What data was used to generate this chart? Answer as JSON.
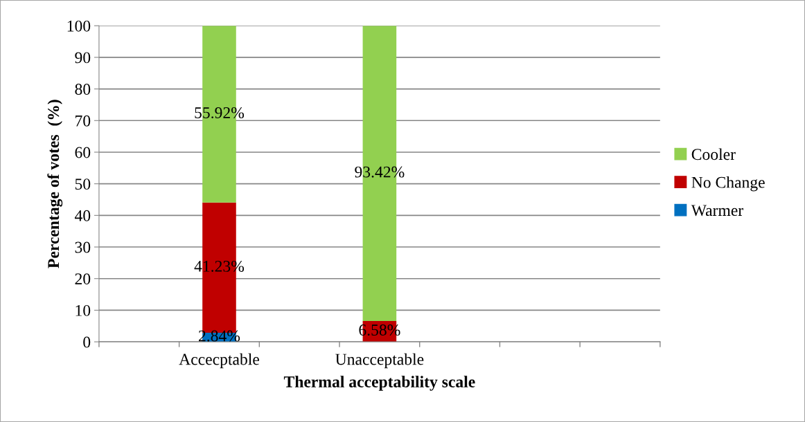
{
  "chart_data": {
    "type": "bar",
    "stacked": true,
    "xlabel": "Thermal acceptability scale",
    "ylabel": "Percentage of votes  (%)",
    "categories": [
      null,
      "Accecptable",
      null,
      "Unacceptable",
      null,
      null,
      null
    ],
    "series": [
      {
        "name": "Warmer",
        "color": "#0070c0",
        "values": [
          null,
          2.84,
          null,
          0,
          null,
          null,
          null
        ],
        "value_labels": [
          null,
          "2.84%",
          null,
          null,
          null,
          null,
          null
        ]
      },
      {
        "name": "No Change",
        "color": "#c00000",
        "values": [
          null,
          41.23,
          null,
          6.58,
          null,
          null,
          null
        ],
        "value_labels": [
          null,
          "41.23%",
          null,
          "6.58%",
          null,
          null,
          null
        ]
      },
      {
        "name": "Cooler",
        "color": "#92d050",
        "values": [
          null,
          55.92,
          null,
          93.42,
          null,
          null,
          null
        ],
        "value_labels": [
          null,
          "55.92%",
          null,
          "93.42%",
          null,
          null,
          null
        ]
      }
    ],
    "ylim": [
      0,
      100
    ],
    "yticks": [
      0,
      10,
      20,
      30,
      40,
      50,
      60,
      70,
      80,
      90,
      100
    ],
    "grid": "y",
    "legend": "right"
  }
}
